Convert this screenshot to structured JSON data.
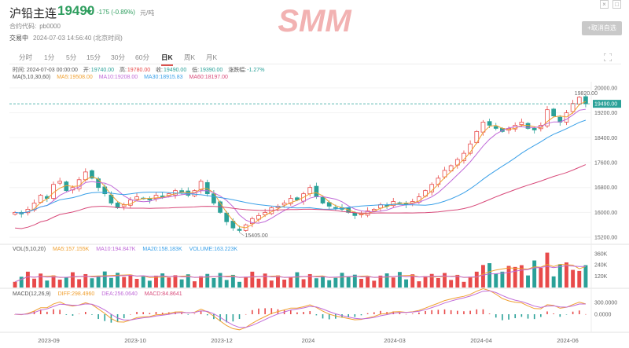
{
  "header": {
    "title": "沪铅主连",
    "price": "19490",
    "change": "-175 (-0.89%)",
    "unit": "元/吨",
    "code_label": "合约代码:",
    "code_value": "pb0000",
    "status": "交易中",
    "time": "2024-07-03 14:56:40 (北京时间)",
    "fav_button": "+取消自选",
    "window_controls": [
      "×",
      "□"
    ],
    "logo_text": "SMM"
  },
  "tabs": [
    "分时",
    "1分",
    "5分",
    "15分",
    "30分",
    "60分",
    "日K",
    "周K",
    "月K"
  ],
  "active_tab": "日K",
  "info": {
    "time": "时间: 2024-07-03 00:00:00",
    "open_label": "开:",
    "open": "19740.00",
    "high_label": "高:",
    "high": "19780.00",
    "close_label": "收:",
    "close": "19490.00",
    "low_label": "低:",
    "low": "19390.00",
    "pct_label": "涨跌幅:",
    "pct": "-1.27%"
  },
  "ma_legend": {
    "label": "MA(5,10,30,60)",
    "ma5": "MA5:19508.00",
    "ma10": "MA10:19208.00",
    "ma30": "MA30:18915.83",
    "ma60": "MA60:18197.00"
  },
  "vol_legend": {
    "label": "VOL(5,10,20)",
    "ma5": "MA5:157.155K",
    "ma10": "MA10:194.847K",
    "ma20": "MA20:158.183K",
    "volume": "VOLUME:163.223K"
  },
  "macd_legend": {
    "label": "MACD(12,26,9)",
    "diff": "DIFF:298.4960",
    "dea": "DEA:256.0640",
    "macd": "MACD:84.8641"
  },
  "colors": {
    "up": "#e84a4a",
    "down": "#2aa198",
    "ma5": "#f0a030",
    "ma10": "#c06ad8",
    "ma30": "#3aa0e8",
    "ma60": "#d84a7a",
    "price_green": "#2f9e5f"
  },
  "chart_data": [
    {
      "type": "candlestick",
      "title": "",
      "y_ticks": [
        "20000.00",
        "19200.00",
        "18400.00",
        "17600.00",
        "16800.00",
        "16000.00",
        "15200.00"
      ],
      "ylim": [
        15000,
        20200
      ],
      "x_ticks": [
        "2023-09",
        "2023-10",
        "2023-12",
        "2024",
        "2024-03",
        "2024-04",
        "2024-06"
      ],
      "current_price_label": "19490.00",
      "high_marker": "19820.00",
      "low_marker": "15405.00",
      "close_path": [
        16000,
        15950,
        16100,
        16300,
        16550,
        16450,
        16900,
        17000,
        16700,
        16800,
        17050,
        17300,
        17100,
        16800,
        16600,
        16300,
        16150,
        16250,
        16400,
        16500,
        16450,
        16400,
        16550,
        16500,
        16600,
        16700,
        16650,
        16550,
        16700,
        17000,
        16600,
        16300,
        16000,
        15700,
        15500,
        15420,
        15600,
        15800,
        15900,
        16000,
        16150,
        16200,
        16300,
        16450,
        16400,
        16600,
        16800,
        16500,
        16300,
        16200,
        16150,
        16100,
        16000,
        15900,
        15950,
        16050,
        16100,
        16250,
        16200,
        16350,
        16300,
        16250,
        16350,
        16500,
        16700,
        16900,
        17100,
        17350,
        17500,
        17700,
        17900,
        18200,
        18600,
        18900,
        18800,
        18700,
        18600,
        18700,
        18800,
        18900,
        18700,
        18650,
        18800,
        19300,
        19100,
        18900,
        19200,
        19500,
        19700,
        19490
      ]
    },
    {
      "type": "bar",
      "title": "",
      "series_name": "VOLUME",
      "y_ticks": [
        "360K",
        "240K",
        "120K"
      ],
      "ylim": [
        0,
        400
      ]
    },
    {
      "type": "bar",
      "title": "",
      "series_name": "MACD",
      "y_ticks": [
        "300.0000",
        "0.0000"
      ],
      "ylim": [
        -400,
        500
      ]
    }
  ]
}
